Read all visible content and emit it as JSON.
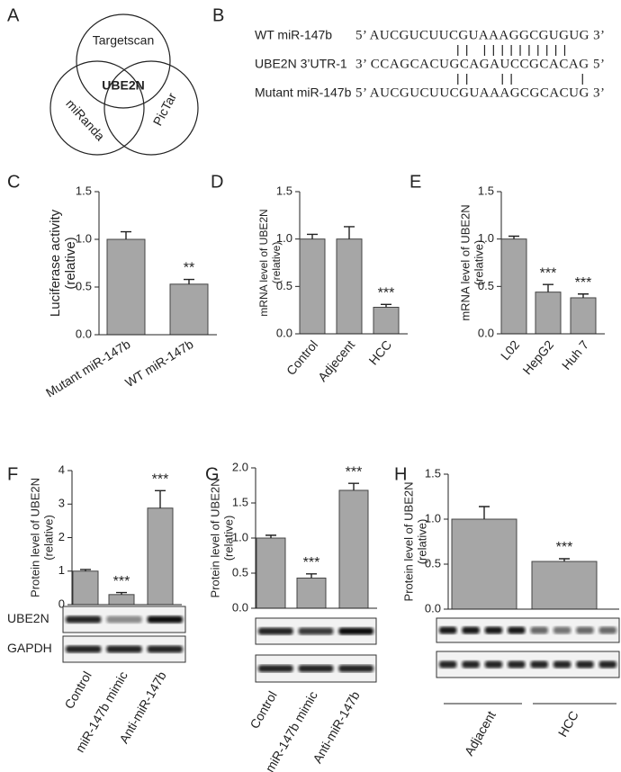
{
  "venn": {
    "panel": "A",
    "sets": [
      "Targetscan",
      "miRanda",
      "PicTar"
    ],
    "center": "UBE2N"
  },
  "alignment": {
    "panel": "B",
    "rows": [
      {
        "name": "WT miR-147b",
        "sequence": "5’ AUCGUCUUCGUAAAGGCGUGUG 3’"
      },
      {
        "name": "UBE2N 3’UTR-1",
        "sequence": "3’ CCAGCACUGCAGAUCCGCACAG 5’"
      },
      {
        "name": "Mutant miR-147b",
        "sequence": "5’ AUCGUCUUCGUAAAGCGCACUG 3’"
      }
    ]
  },
  "chart_data": [
    {
      "type": "bar",
      "panel": "C",
      "ylabel": [
        "Luciferase activity",
        "(relative)"
      ],
      "categories": [
        "Mutant miR-147b",
        "WT miR-147b"
      ],
      "values": [
        1.0,
        0.53
      ],
      "errors": [
        0.08,
        0.05
      ],
      "annotations": [
        null,
        "**"
      ],
      "color": "#a6a6a6",
      "ylim": [
        0,
        1.5
      ],
      "yticks": [
        {
          "value": 0,
          "label": "0.0"
        },
        {
          "value": 0.5,
          "label": "0.5"
        },
        {
          "value": 1,
          "label": "1.0"
        },
        {
          "value": 1.5,
          "label": "1.5"
        }
      ]
    },
    {
      "type": "bar",
      "panel": "D",
      "ylabel": [
        "mRNA level of UBE2N",
        "(relative)"
      ],
      "categories": [
        "Control",
        "Adjecent",
        "HCC"
      ],
      "values": [
        1.0,
        1.0,
        0.28
      ],
      "errors": [
        0.05,
        0.13,
        0.03
      ],
      "annotations": [
        null,
        null,
        "***"
      ],
      "color": "#a6a6a6",
      "ylim": [
        0,
        1.5
      ],
      "yticks": [
        {
          "value": 0,
          "label": "0.0"
        },
        {
          "value": 0.5,
          "label": "0.5"
        },
        {
          "value": 1,
          "label": "1.0"
        },
        {
          "value": 1.5,
          "label": "1.5"
        }
      ]
    },
    {
      "type": "bar",
      "panel": "E",
      "ylabel": [
        "mRNA level of UBE2N",
        "(relative)"
      ],
      "categories": [
        "L02",
        "HepG2",
        "Huh 7"
      ],
      "values": [
        1.0,
        0.44,
        0.38
      ],
      "errors": [
        0.03,
        0.08,
        0.04
      ],
      "annotations": [
        null,
        "***",
        "***"
      ],
      "color": "#a6a6a6",
      "ylim": [
        0,
        1.5
      ],
      "yticks": [
        {
          "value": 0,
          "label": "0.0"
        },
        {
          "value": 0.5,
          "label": "0.5"
        },
        {
          "value": 1,
          "label": "1.0"
        },
        {
          "value": 1.5,
          "label": "1.5"
        }
      ]
    },
    {
      "type": "bar",
      "panel": "F",
      "ylabel": [
        "Protein level of UBE2N",
        "(relative)"
      ],
      "categories": [
        "Control",
        "miR-147b mimic",
        "Anti-miR-147b"
      ],
      "values": [
        1.0,
        0.3,
        2.88
      ],
      "errors": [
        0.05,
        0.06,
        0.52
      ],
      "annotations": [
        null,
        "***",
        "***"
      ],
      "color": "#a6a6a6",
      "ylim": [
        0,
        4
      ],
      "yticks": [
        0,
        1,
        2,
        3,
        4
      ],
      "blot_labels": [
        "UBE2N",
        "GAPDH"
      ]
    },
    {
      "type": "bar",
      "panel": "G",
      "ylabel": [
        "Protein level of UBE2N",
        "(relative)"
      ],
      "categories": [
        "Control",
        "miR-147b mimic",
        "Anti-miR-147b"
      ],
      "values": [
        1.0,
        0.43,
        1.68
      ],
      "errors": [
        0.04,
        0.06,
        0.1
      ],
      "annotations": [
        null,
        "***",
        "***"
      ],
      "color": "#a6a6a6",
      "ylim": [
        0,
        2
      ],
      "yticks": [
        {
          "value": 0,
          "label": "0.0"
        },
        {
          "value": 0.5,
          "label": "0.5"
        },
        {
          "value": 1,
          "label": "1.0"
        },
        {
          "value": 1.5,
          "label": "1.5"
        },
        {
          "value": 2,
          "label": "2.0"
        }
      ]
    },
    {
      "type": "bar",
      "panel": "H",
      "ylabel": [
        "Protein level of UBE2N",
        "(relative)"
      ],
      "categories": [
        "Adjacent",
        "HCC"
      ],
      "values": [
        1.0,
        0.53
      ],
      "errors": [
        0.14,
        0.03
      ],
      "annotations": [
        null,
        "***"
      ],
      "color": "#a6a6a6",
      "ylim": [
        0,
        1.5
      ],
      "yticks": [
        {
          "value": 0,
          "label": "0.0"
        },
        {
          "value": 0.5,
          "label": "0.5"
        },
        {
          "value": 1,
          "label": "1.0"
        },
        {
          "value": 1.5,
          "label": "1.5"
        }
      ]
    }
  ]
}
